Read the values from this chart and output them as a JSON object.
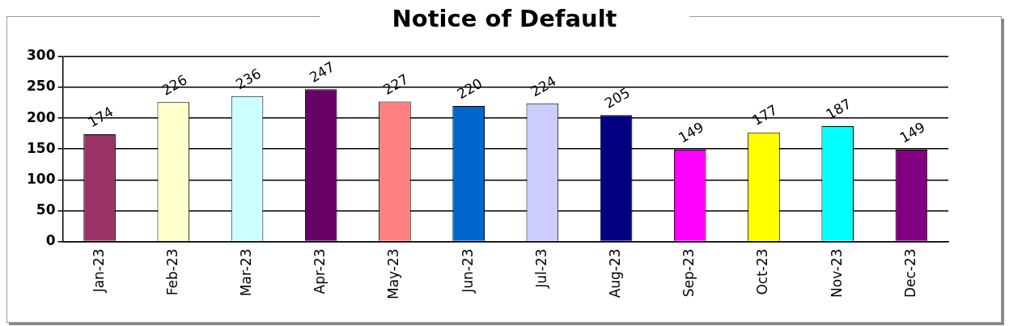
{
  "chart_data": {
    "type": "bar",
    "title": "Notice of Default",
    "categories": [
      "Jan-23",
      "Feb-23",
      "Mar-23",
      "Apr-23",
      "May-23",
      "Jun-23",
      "Jul-23",
      "Aug-23",
      "Sep-23",
      "Oct-23",
      "Nov-23",
      "Dec-23"
    ],
    "values": [
      174,
      226,
      236,
      247,
      227,
      220,
      224,
      205,
      149,
      177,
      187,
      149
    ],
    "colors": [
      "#993366",
      "#ffffcc",
      "#ccffff",
      "#660066",
      "#ff8080",
      "#0066cc",
      "#ccccff",
      "#000080",
      "#ff00ff",
      "#ffff00",
      "#00ffff",
      "#800080"
    ],
    "ylim": [
      0,
      300
    ],
    "yticks": [
      0,
      50,
      100,
      150,
      200,
      250,
      300
    ],
    "grid": "y",
    "data_labels": true,
    "legend": false
  }
}
